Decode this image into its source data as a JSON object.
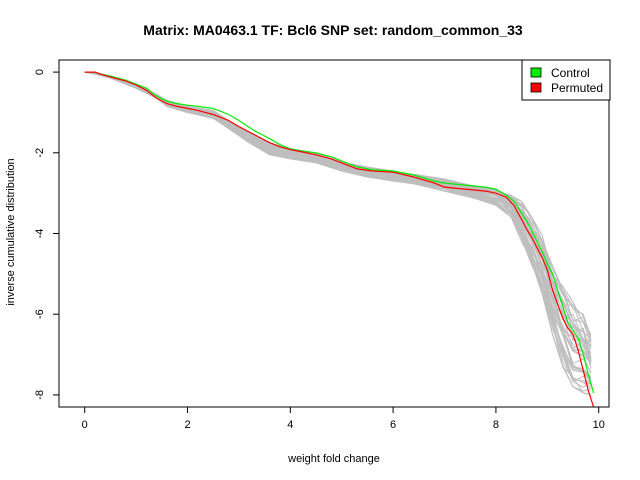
{
  "chart_data": {
    "type": "line",
    "title": "Matrix: MA0463.1 TF: Bcl6 SNP set: random_common_33",
    "xlabel": "weight fold change",
    "ylabel": "inverse cumulative distribution",
    "xlim": [
      -0.5,
      10.2
    ],
    "ylim": [
      -8.3,
      0.3
    ],
    "x_ticks": [
      0,
      2,
      4,
      6,
      8,
      10
    ],
    "y_ticks": [
      0,
      -2,
      -4,
      -6,
      -8
    ],
    "x_tick_labels": [
      "0",
      "2",
      "4",
      "6",
      "8",
      "10"
    ],
    "y_tick_labels": [
      "0",
      "-2",
      "-4",
      "-6",
      "-8"
    ],
    "grid": false,
    "legend_position": "top-right",
    "legend": [
      {
        "label": "Control",
        "color": "#00ee00"
      },
      {
        "label": "Permuted",
        "color": "#ff0000"
      }
    ],
    "background_band": {
      "color": "#bebebe",
      "count": 40,
      "x": [
        0,
        0.2,
        0.5,
        1.0,
        1.4,
        1.6,
        2.0,
        2.5,
        2.8,
        3.2,
        3.6,
        4.0,
        4.5,
        5.0,
        5.5,
        6.0,
        6.5,
        7.0,
        7.5,
        8.0,
        8.3,
        8.5,
        8.7,
        8.9,
        9.1,
        9.3,
        9.5,
        9.7,
        9.85
      ],
      "lower": [
        0,
        -0.05,
        -0.15,
        -0.4,
        -0.65,
        -0.85,
        -1.0,
        -1.15,
        -1.4,
        -1.75,
        -2.05,
        -2.15,
        -2.25,
        -2.45,
        -2.6,
        -2.7,
        -2.8,
        -2.95,
        -3.1,
        -3.3,
        -3.6,
        -4.2,
        -4.8,
        -5.5,
        -6.5,
        -7.3,
        -7.8,
        -7.95,
        -8.0
      ],
      "upper": [
        0,
        -0.0,
        -0.1,
        -0.3,
        -0.55,
        -0.7,
        -0.85,
        -0.95,
        -1.2,
        -1.5,
        -1.75,
        -1.9,
        -2.0,
        -2.2,
        -2.35,
        -2.45,
        -2.55,
        -2.65,
        -2.8,
        -2.9,
        -3.05,
        -3.2,
        -3.6,
        -4.0,
        -4.8,
        -5.3,
        -5.7,
        -6.0,
        -6.5
      ]
    },
    "series": [
      {
        "name": "Control",
        "color": "#00ee00",
        "x": [
          0,
          0.2,
          0.3,
          0.5,
          0.8,
          1.0,
          1.2,
          1.4,
          1.6,
          1.8,
          2.0,
          2.2,
          2.5,
          2.8,
          3.0,
          3.3,
          3.6,
          3.8,
          4.0,
          4.2,
          4.5,
          4.8,
          5.0,
          5.3,
          5.6,
          6.0,
          6.4,
          6.8,
          7.0,
          7.4,
          7.8,
          8.0,
          8.2,
          8.35,
          8.5,
          8.6,
          8.7,
          8.8,
          8.9,
          9.0,
          9.1,
          9.2,
          9.3,
          9.4,
          9.5,
          9.6,
          9.7,
          9.8,
          9.9
        ],
        "y": [
          0,
          0,
          -0.05,
          -0.1,
          -0.2,
          -0.3,
          -0.4,
          -0.6,
          -0.72,
          -0.78,
          -0.82,
          -0.85,
          -0.9,
          -1.05,
          -1.2,
          -1.45,
          -1.65,
          -1.8,
          -1.9,
          -1.95,
          -2.0,
          -2.1,
          -2.2,
          -2.35,
          -2.42,
          -2.45,
          -2.55,
          -2.7,
          -2.75,
          -2.8,
          -2.85,
          -2.9,
          -3.05,
          -3.2,
          -3.5,
          -3.7,
          -3.95,
          -4.2,
          -4.45,
          -4.75,
          -5.0,
          -5.4,
          -5.8,
          -6.2,
          -6.4,
          -6.6,
          -7.0,
          -7.5,
          -7.95
        ]
      },
      {
        "name": "Permuted",
        "color": "#ff0000",
        "x": [
          0,
          0.2,
          0.3,
          0.5,
          0.8,
          1.0,
          1.2,
          1.4,
          1.6,
          1.8,
          2.0,
          2.2,
          2.5,
          2.8,
          3.0,
          3.3,
          3.6,
          3.8,
          4.0,
          4.2,
          4.5,
          4.8,
          5.0,
          5.3,
          5.6,
          6.0,
          6.4,
          6.8,
          7.0,
          7.4,
          7.8,
          8.0,
          8.2,
          8.35,
          8.5,
          8.6,
          8.7,
          8.8,
          8.9,
          9.0,
          9.1,
          9.2,
          9.3,
          9.4,
          9.5,
          9.6,
          9.7,
          9.8,
          9.9
        ],
        "y": [
          0,
          0,
          -0.05,
          -0.12,
          -0.22,
          -0.32,
          -0.45,
          -0.65,
          -0.78,
          -0.85,
          -0.9,
          -0.95,
          -1.05,
          -1.2,
          -1.35,
          -1.55,
          -1.75,
          -1.85,
          -1.92,
          -1.97,
          -2.05,
          -2.15,
          -2.25,
          -2.4,
          -2.45,
          -2.48,
          -2.6,
          -2.75,
          -2.85,
          -2.9,
          -2.95,
          -3.0,
          -3.1,
          -3.3,
          -3.65,
          -3.9,
          -4.1,
          -4.35,
          -4.6,
          -4.9,
          -5.4,
          -5.75,
          -6.1,
          -6.35,
          -6.5,
          -6.9,
          -7.4,
          -7.9,
          -8.3
        ]
      }
    ]
  }
}
